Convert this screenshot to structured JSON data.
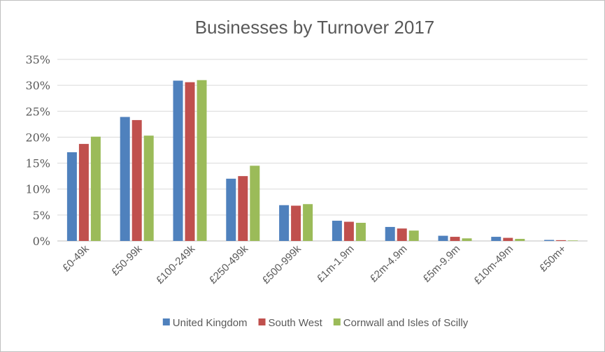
{
  "chart_data": {
    "type": "bar",
    "title": "Businesses by Turnover 2017",
    "xlabel": "",
    "ylabel": "",
    "ylim": [
      0,
      35
    ],
    "yticks": [
      "0%",
      "5%",
      "10%",
      "15%",
      "20%",
      "25%",
      "30%",
      "35%"
    ],
    "ytick_values": [
      0,
      5,
      10,
      15,
      20,
      25,
      30,
      35
    ],
    "grid": true,
    "legend_position": "bottom",
    "categories": [
      "£0-49k",
      "£50-99k",
      "£100-249k",
      "£250-499k",
      "£500-999k",
      "£1m-1.9m",
      "£2m-4.9m",
      "£5m-9.9m",
      "£10m-49m",
      "£50m+"
    ],
    "series": [
      {
        "name": "United Kingdom",
        "color": "#4f81bd",
        "values": [
          17.1,
          23.9,
          30.9,
          12.0,
          6.9,
          3.9,
          2.7,
          1.0,
          0.8,
          0.2
        ]
      },
      {
        "name": "South West",
        "color": "#c0504d",
        "values": [
          18.7,
          23.3,
          30.6,
          12.5,
          6.8,
          3.7,
          2.4,
          0.8,
          0.6,
          0.15
        ]
      },
      {
        "name": "Cornwall and Isles of Scilly",
        "color": "#9bbb59",
        "values": [
          20.1,
          20.3,
          31.0,
          14.5,
          7.1,
          3.5,
          2.0,
          0.5,
          0.4,
          0.1
        ]
      }
    ]
  }
}
